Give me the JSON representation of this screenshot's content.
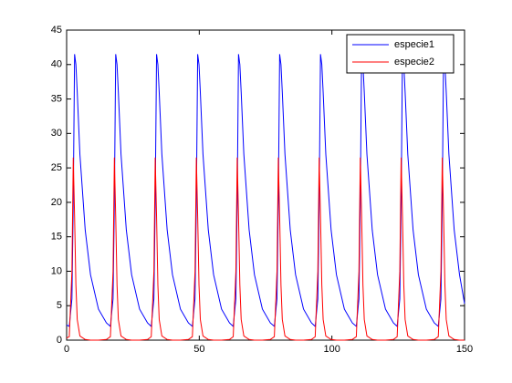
{
  "chart_data": {
    "type": "line",
    "x": [
      0,
      1,
      2,
      2.5,
      3,
      3.5,
      4,
      5,
      7,
      9,
      12,
      15,
      16.5,
      17.5,
      18,
      18.5,
      19,
      19.5,
      20.5,
      22.5,
      24.5,
      27.5,
      30.5,
      31.9,
      32.9,
      33.4,
      33.9,
      34.4,
      34.9,
      35.9,
      37.9,
      39.9,
      42.9,
      45.9,
      47.4,
      48.4,
      48.9,
      49.4,
      49.9,
      50.4,
      51.4,
      53.4,
      55.4,
      58.4,
      61.4,
      62.8,
      63.8,
      64.3,
      64.8,
      65.3,
      65.8,
      66.8,
      68.8,
      70.8,
      73.8,
      76.8,
      78.3,
      79.3,
      79.8,
      80.3,
      80.8,
      81.3,
      82.3,
      84.3,
      86.3,
      89.3,
      92.3,
      93.7,
      94.7,
      95.2,
      95.7,
      96.2,
      96.7,
      97.7,
      99.7,
      101.7,
      104.7,
      107.7,
      109.2,
      110.2,
      110.7,
      111.2,
      111.7,
      112.2,
      113.2,
      115.2,
      117.2,
      120.2,
      123.2,
      124.6,
      125.6,
      126.1,
      126.6,
      127.1,
      127.6,
      128.6,
      130.6,
      132.6,
      135.6,
      138.6,
      140.1,
      141.1,
      141.6,
      142.1,
      142.6,
      143.1,
      144.1,
      146.1,
      148.1,
      150
    ],
    "series": [
      {
        "name": "especie1",
        "color": "#0000ff",
        "values": [
          2.2,
          2,
          6,
          20,
          41.5,
          40,
          36,
          27,
          16,
          9.5,
          4.5,
          2.5,
          2,
          6,
          20,
          41.5,
          40,
          36,
          27,
          16,
          9.5,
          4.5,
          2.5,
          2,
          6,
          20,
          41.5,
          40,
          36,
          27,
          16,
          9.5,
          4.5,
          2.5,
          2,
          6,
          20,
          41.5,
          40,
          36,
          27,
          16,
          9.5,
          4.5,
          2.5,
          2,
          6,
          20,
          41.5,
          40,
          36,
          27,
          16,
          9.5,
          4.5,
          2.5,
          2,
          6,
          20,
          41.5,
          40,
          36,
          27,
          16,
          9.5,
          4.5,
          2.5,
          2,
          6,
          20,
          41.5,
          40,
          36,
          27,
          16,
          9.5,
          4.5,
          2.5,
          2,
          6,
          20,
          41.5,
          40,
          36,
          27,
          16,
          9.5,
          4.5,
          2.5,
          2,
          6,
          20,
          41.5,
          40,
          36,
          27,
          16,
          9.5,
          4.5,
          2.5,
          2,
          6,
          20,
          41.5,
          40,
          36,
          27,
          16,
          9.5,
          5.3
        ]
      },
      {
        "name": "especie2",
        "color": "#ff0000",
        "values": [
          0.3,
          0.5,
          10,
          26.5,
          18,
          8,
          3,
          0.6,
          0.1,
          0,
          0,
          0.1,
          0.5,
          10,
          26.5,
          18,
          8,
          3,
          0.6,
          0.1,
          0,
          0,
          0.1,
          0.5,
          10,
          26.5,
          18,
          8,
          3,
          0.6,
          0.1,
          0,
          0,
          0.1,
          0.5,
          10,
          26.5,
          18,
          8,
          3,
          0.6,
          0.1,
          0,
          0,
          0.1,
          0.5,
          10,
          26.5,
          18,
          8,
          3,
          0.6,
          0.1,
          0,
          0,
          0.1,
          0.5,
          10,
          26.5,
          18,
          8,
          3,
          0.6,
          0.1,
          0,
          0,
          0.1,
          0.5,
          10,
          26.5,
          18,
          8,
          3,
          0.6,
          0.1,
          0,
          0,
          0.1,
          0.5,
          10,
          26.5,
          18,
          8,
          3,
          0.6,
          0.1,
          0,
          0,
          0.1,
          0.5,
          10,
          26.5,
          18,
          8,
          3,
          0.6,
          0.1,
          0,
          0,
          0.1,
          0.5,
          10,
          26.5,
          18,
          8,
          3,
          0.6,
          0.1,
          0,
          0
        ]
      }
    ],
    "xlim": [
      0,
      150
    ],
    "xticks": [
      0,
      50,
      100,
      150
    ],
    "ylim": [
      0,
      45
    ],
    "yticks": [
      0,
      5,
      10,
      15,
      20,
      25,
      30,
      35,
      40,
      45
    ],
    "legend": "top-right"
  }
}
